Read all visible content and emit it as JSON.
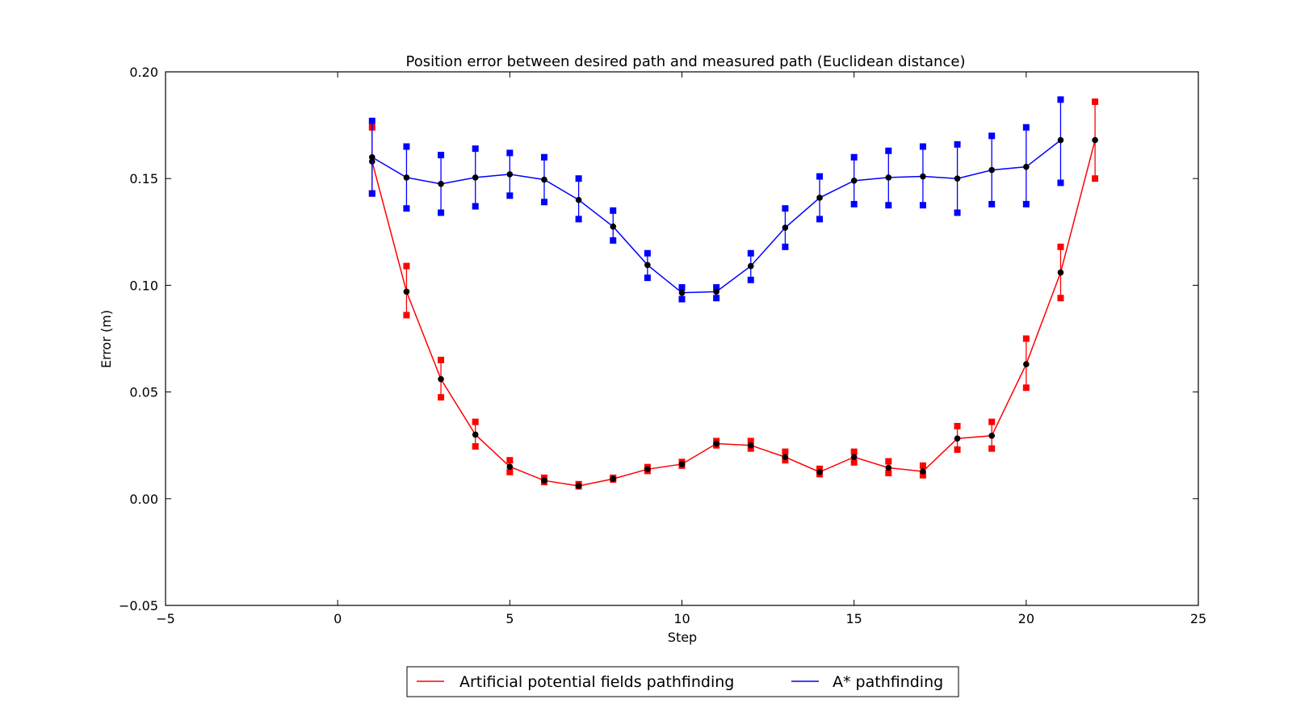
{
  "chart_data": {
    "type": "line",
    "title": "Position error between desired path and measured path (Euclidean distance)",
    "xlabel": "Step",
    "ylabel": "Error (m)",
    "xlim": [
      -5,
      25
    ],
    "ylim": [
      -0.05,
      0.2
    ],
    "xticks": [
      -5,
      0,
      5,
      10,
      15,
      20,
      25
    ],
    "xtick_labels": [
      "−5",
      "0",
      "5",
      "10",
      "15",
      "20",
      "25"
    ],
    "yticks": [
      -0.05,
      0.0,
      0.05,
      0.1,
      0.15,
      0.2
    ],
    "ytick_labels": [
      "−0.05",
      "0.00",
      "0.05",
      "0.10",
      "0.15",
      "0.20"
    ],
    "grid": false,
    "legend_position": "below",
    "series": [
      {
        "name": "Artificial potential fields pathfinding",
        "color": "#ff0000",
        "x": [
          1,
          2,
          3,
          4,
          5,
          6,
          7,
          8,
          9,
          10,
          11,
          12,
          13,
          14,
          15,
          16,
          17,
          18,
          19,
          20,
          21,
          22
        ],
        "y": [
          0.158,
          0.097,
          0.056,
          0.03,
          0.015,
          0.0085,
          0.006,
          0.0093,
          0.0138,
          0.0162,
          0.0258,
          0.025,
          0.0195,
          0.0125,
          0.0195,
          0.0145,
          0.0128,
          0.0282,
          0.0295,
          0.063,
          0.106,
          0.168
        ],
        "err_low": [
          0.143,
          0.086,
          0.0475,
          0.0245,
          0.0125,
          0.0078,
          0.0058,
          0.009,
          0.013,
          0.0155,
          0.025,
          0.0235,
          0.018,
          0.0115,
          0.017,
          0.012,
          0.011,
          0.023,
          0.0235,
          0.052,
          0.094,
          0.15
        ],
        "err_high": [
          0.174,
          0.109,
          0.065,
          0.036,
          0.018,
          0.0098,
          0.0068,
          0.0098,
          0.0148,
          0.0172,
          0.027,
          0.027,
          0.022,
          0.014,
          0.022,
          0.0175,
          0.0155,
          0.034,
          0.036,
          0.075,
          0.118,
          0.186
        ]
      },
      {
        "name": "A* pathfinding",
        "color": "#0000ff",
        "x": [
          1,
          2,
          3,
          4,
          5,
          6,
          7,
          8,
          9,
          10,
          11,
          12,
          13,
          14,
          15,
          16,
          17,
          18,
          19,
          20,
          21
        ],
        "y": [
          0.16,
          0.1505,
          0.1475,
          0.1505,
          0.152,
          0.1495,
          0.14,
          0.1275,
          0.1095,
          0.0965,
          0.097,
          0.109,
          0.127,
          0.141,
          0.149,
          0.1505,
          0.151,
          0.15,
          0.154,
          0.1555,
          0.168
        ],
        "err_low": [
          0.143,
          0.136,
          0.134,
          0.137,
          0.142,
          0.139,
          0.131,
          0.121,
          0.1035,
          0.0935,
          0.094,
          0.1025,
          0.118,
          0.131,
          0.138,
          0.1375,
          0.1375,
          0.134,
          0.138,
          0.138,
          0.148
        ],
        "err_high": [
          0.177,
          0.165,
          0.161,
          0.164,
          0.162,
          0.16,
          0.15,
          0.135,
          0.115,
          0.099,
          0.099,
          0.115,
          0.136,
          0.151,
          0.16,
          0.163,
          0.165,
          0.166,
          0.17,
          0.174,
          0.187
        ]
      }
    ]
  }
}
